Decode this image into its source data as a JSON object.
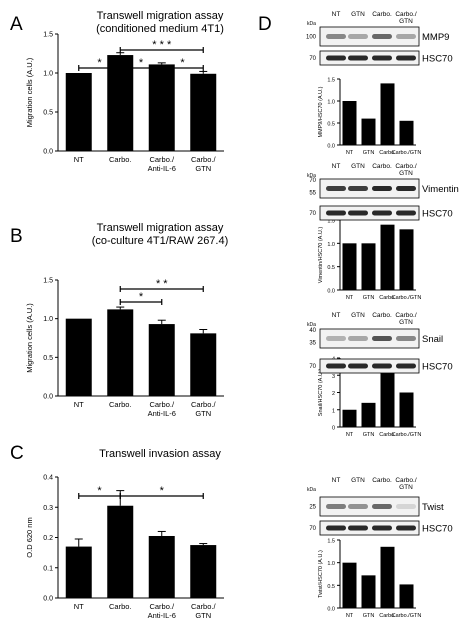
{
  "panels": {
    "A": {
      "letter": "A",
      "title_line1": "Transwell migration assay",
      "title_line2": "(conditioned medium 4T1)"
    },
    "B": {
      "letter": "B",
      "title_line1": "Transwell migration assay",
      "title_line2": "(co-culture 4T1/RAW 267.4)"
    },
    "C": {
      "letter": "C",
      "title_line1": "Transwell invasion assay",
      "title_line2": ""
    },
    "D": {
      "letter": "D"
    }
  },
  "chart_data": [
    {
      "id": "A",
      "type": "bar",
      "title": "Transwell migration assay (conditioned medium 4T1)",
      "categories": [
        "NT",
        "Carbo.",
        "Carbo./ Anti-IL-6",
        "Carbo./ GTN"
      ],
      "values": [
        1.0,
        1.23,
        1.11,
        0.99
      ],
      "errors": [
        0.0,
        0.03,
        0.02,
        0.03
      ],
      "ylabel": "Migration cells (A.U.)",
      "ylim": [
        0,
        1.5
      ],
      "yticks": [
        "0.0",
        "0.5",
        "1.0",
        "1.5"
      ],
      "significance": [
        {
          "from": 0,
          "to": 1,
          "label": "*"
        },
        {
          "from": 1,
          "to": 2,
          "label": "*"
        },
        {
          "from": 2,
          "to": 3,
          "label": "*"
        },
        {
          "from": 1,
          "to": 3,
          "label": "* * *"
        }
      ]
    },
    {
      "id": "B",
      "type": "bar",
      "title": "Transwell migration assay (co-culture 4T1/RAW 267.4)",
      "categories": [
        "NT",
        "Carbo.",
        "Carbo./ Anti-IL-6",
        "Carbo./ GTN"
      ],
      "values": [
        1.0,
        1.12,
        0.93,
        0.81
      ],
      "errors": [
        0.0,
        0.03,
        0.05,
        0.05
      ],
      "ylabel": "Migration cells (A.U.)",
      "ylim": [
        0,
        1.5
      ],
      "yticks": [
        "0.0",
        "0.5",
        "1.0",
        "1.5"
      ],
      "significance": [
        {
          "from": 1,
          "to": 2,
          "label": "*"
        },
        {
          "from": 1,
          "to": 3,
          "label": "* *"
        }
      ]
    },
    {
      "id": "C",
      "type": "bar",
      "title": "Transwell invasion assay",
      "categories": [
        "NT",
        "Carbo.",
        "Carbo./ Anti-IL-6",
        "Carbo./ GTN"
      ],
      "values": [
        0.17,
        0.305,
        0.205,
        0.175
      ],
      "errors": [
        0.025,
        0.05,
        0.015,
        0.005
      ],
      "ylabel": "O.D 620 nm",
      "ylim": [
        0,
        0.4
      ],
      "yticks": [
        "0.0",
        "0.1",
        "0.2",
        "0.3",
        "0.4"
      ],
      "significance": [
        {
          "from": 0,
          "to": 1,
          "label": "*"
        },
        {
          "from": 1,
          "to": 3,
          "label": "*"
        }
      ]
    },
    {
      "id": "D1",
      "type": "bar",
      "categories": [
        "NT",
        "GTN",
        "Carbo.",
        "Carbo./GTN"
      ],
      "values": [
        1.0,
        0.6,
        1.4,
        0.55
      ],
      "ylabel": "MMP9/HSC70 (A.U.)",
      "ylim": [
        0,
        1.5
      ],
      "yticks": [
        "0.0",
        "0.5",
        "1.0",
        "1.5"
      ]
    },
    {
      "id": "D2",
      "type": "bar",
      "categories": [
        "NT",
        "GTN",
        "Carbo.",
        "Carbo./GTN"
      ],
      "values": [
        1.0,
        1.0,
        1.4,
        1.3
      ],
      "ylabel": "Vimentin/HSC70 (A.U.)",
      "ylim": [
        0,
        1.5
      ],
      "yticks": [
        "0.0",
        "0.5",
        "1.0",
        "1.5"
      ]
    },
    {
      "id": "D3",
      "type": "bar",
      "categories": [
        "NT",
        "GTN",
        "Carbo.",
        "Carbo./GTN"
      ],
      "values": [
        1.0,
        1.4,
        3.4,
        2.0
      ],
      "ylabel": "Snail/HSC70 (A.U.)",
      "ylim": [
        0,
        4
      ],
      "yticks": [
        "0",
        "1",
        "2",
        "3",
        "4"
      ]
    },
    {
      "id": "D4",
      "type": "bar",
      "categories": [
        "NT",
        "GTN",
        "Carbo.",
        "Carbo./GTN"
      ],
      "values": [
        1.0,
        0.72,
        1.35,
        0.52
      ],
      "ylabel": "Twist/HSC70 (A.U.)",
      "ylim": [
        0,
        1.5
      ],
      "yticks": [
        "0.0",
        "0.5",
        "1.0",
        "1.5"
      ]
    }
  ],
  "blots": [
    {
      "id": "MMP9",
      "lanes": [
        "NT",
        "GTN",
        "Carbo.",
        "Carbo./ GTN"
      ],
      "kda_unit": "kDa",
      "rows": [
        {
          "protein": "MMP9",
          "marker": "100",
          "intensity": [
            0.45,
            0.3,
            0.6,
            0.3
          ]
        },
        {
          "protein": "HSC70",
          "marker": "70",
          "intensity": [
            0.9,
            0.9,
            0.9,
            0.9
          ]
        }
      ]
    },
    {
      "id": "Vimentin",
      "lanes": [
        "NT",
        "GTN",
        "Carbo.",
        "Carbo./ GTN"
      ],
      "kda_unit": "kDa",
      "rows": [
        {
          "protein": "Vimentin",
          "marker": "55",
          "marker2": "70",
          "intensity": [
            0.8,
            0.8,
            0.9,
            0.9
          ]
        },
        {
          "protein": "HSC70",
          "marker": "70",
          "intensity": [
            0.9,
            0.9,
            0.9,
            0.9
          ]
        }
      ]
    },
    {
      "id": "Snail",
      "lanes": [
        "NT",
        "GTN",
        "Carbo.",
        "Carbo./ GTN"
      ],
      "kda_unit": "kDa",
      "rows": [
        {
          "protein": "Snail",
          "marker": "35",
          "marker2": "40",
          "intensity": [
            0.25,
            0.3,
            0.7,
            0.45
          ]
        },
        {
          "protein": "HSC70",
          "marker": "70",
          "intensity": [
            0.9,
            0.9,
            0.9,
            0.9
          ]
        }
      ]
    },
    {
      "id": "Twist",
      "lanes": [
        "NT",
        "GTN",
        "Carbo.",
        "Carbo./ GTN"
      ],
      "kda_unit": "kDa",
      "rows": [
        {
          "protein": "Twist",
          "marker": "25",
          "intensity": [
            0.5,
            0.4,
            0.6,
            0.08
          ]
        },
        {
          "protein": "HSC70",
          "marker": "70",
          "intensity": [
            0.9,
            0.9,
            0.9,
            0.9
          ]
        }
      ]
    }
  ]
}
